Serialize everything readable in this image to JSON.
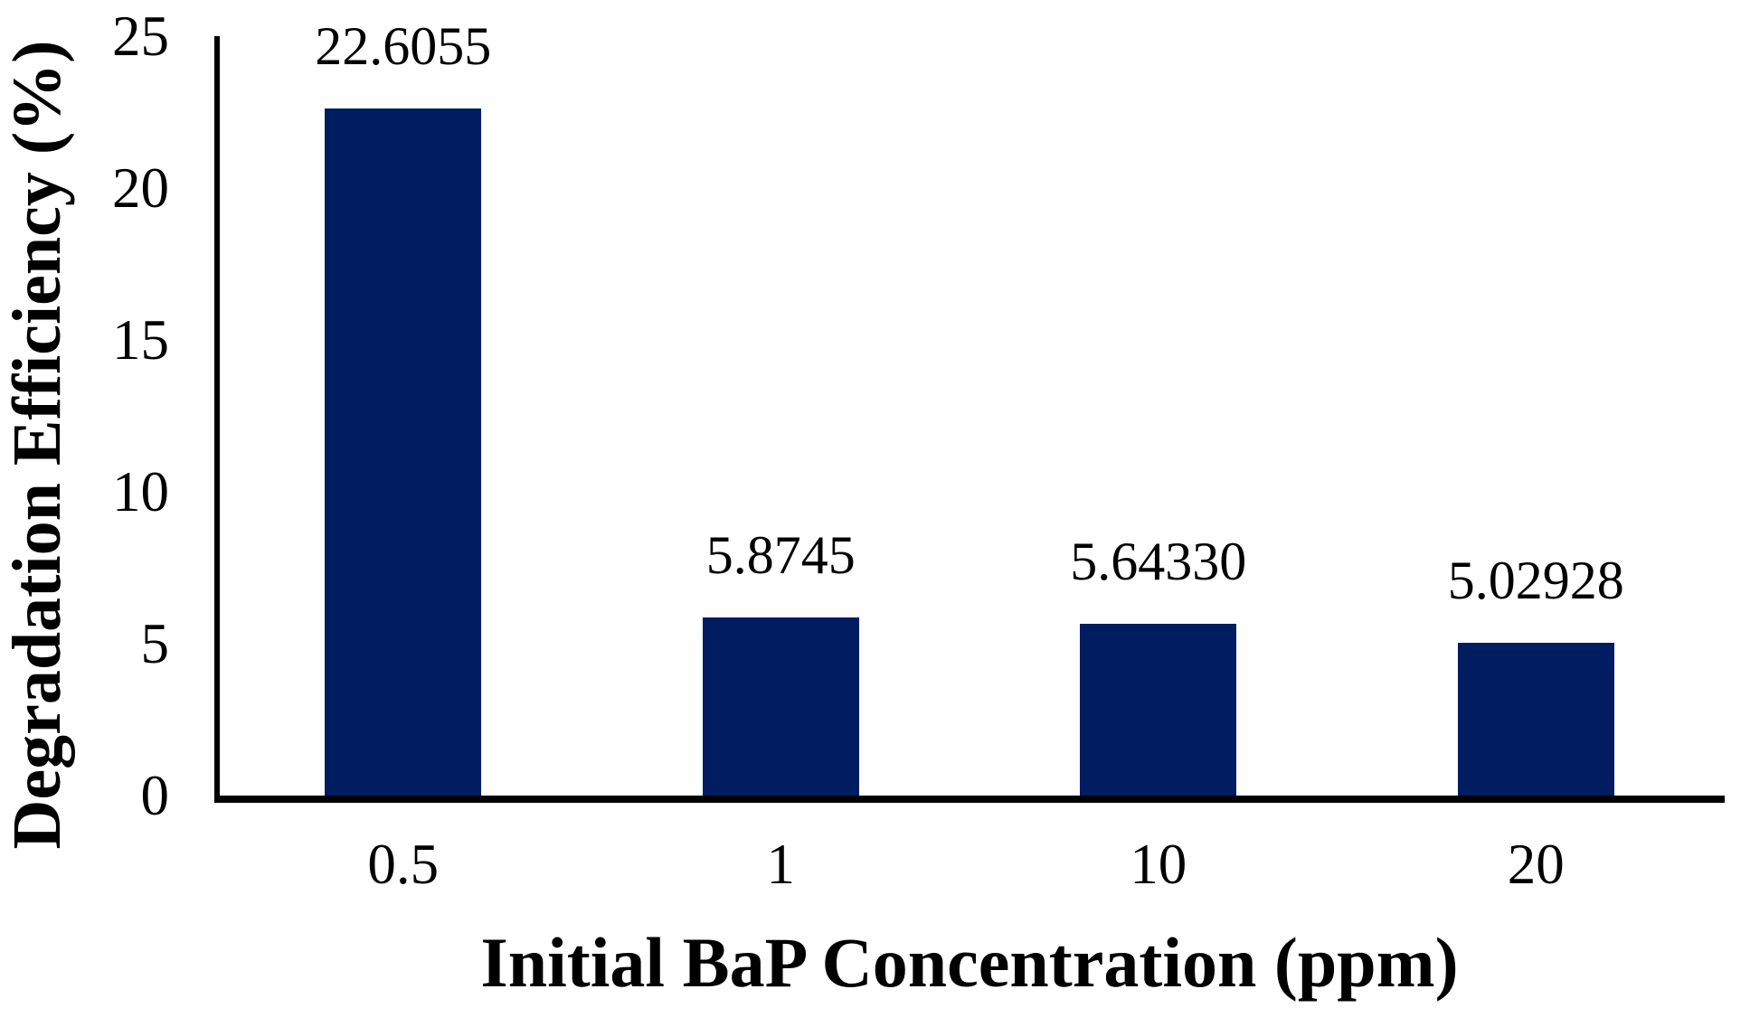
{
  "chart_data": {
    "type": "bar",
    "title": "",
    "xlabel": "Initial BaP Concentration (ppm)",
    "ylabel": "Degradation Efficiency (%)",
    "categories": [
      "0.5",
      "1",
      "10",
      "20"
    ],
    "values": [
      22.6055,
      5.8745,
      5.6433,
      5.02928
    ],
    "data_labels": [
      "22.6055",
      "5.8745",
      "5.64330",
      "5.02928"
    ],
    "ylim": [
      0,
      25
    ],
    "yticks": [
      0,
      5,
      10,
      15,
      20,
      25
    ],
    "ytick_labels": [
      "0",
      "5",
      "10",
      "15",
      "20",
      "25"
    ],
    "grid": false,
    "legend": "none",
    "bar_color": "#001D61",
    "axis_color": "#000000",
    "text_color": "#000000",
    "background": "#ffffff"
  }
}
